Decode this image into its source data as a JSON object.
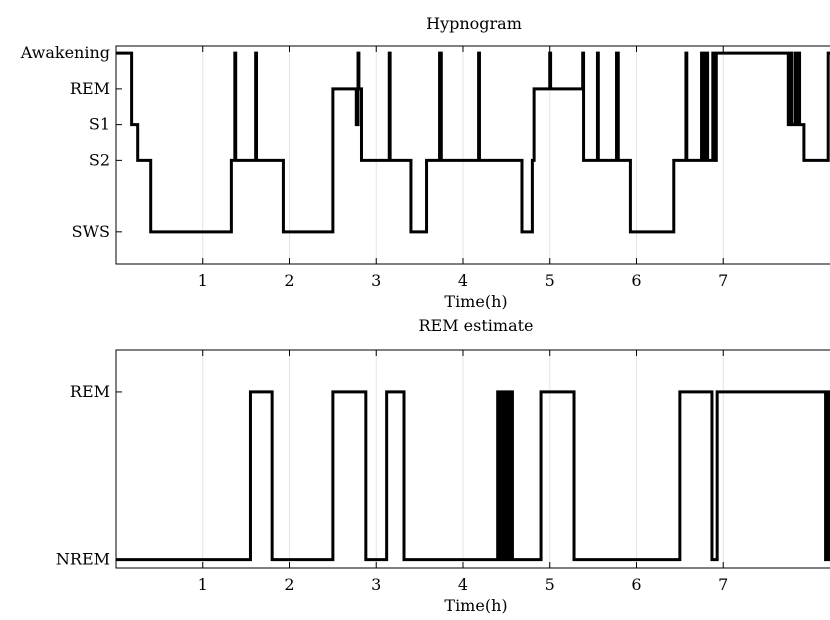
{
  "chart_data": [
    {
      "type": "line",
      "title": "Hypnogram",
      "xlabel": "Time(h)",
      "ylabel": "",
      "xlim": [
        0,
        8.3
      ],
      "x_ticks": [
        1,
        2,
        3,
        4,
        5,
        6,
        7
      ],
      "y_levels": [
        {
          "label": "Awakening",
          "value": 5
        },
        {
          "label": "REM",
          "value": 4
        },
        {
          "label": "S1",
          "value": 3
        },
        {
          "label": "S2",
          "value": 2
        },
        {
          "label": "SWS",
          "value": 0
        }
      ],
      "ylim": [
        -0.9,
        5.2
      ],
      "grid": true,
      "series": [
        {
          "values": [
            [
              0,
              5
            ],
            [
              0.18,
              5
            ],
            [
              0.18,
              3
            ],
            [
              0.25,
              3
            ],
            [
              0.25,
              2
            ],
            [
              0.4,
              2
            ],
            [
              0.4,
              0
            ],
            [
              1.33,
              0
            ],
            [
              1.33,
              2
            ],
            [
              1.37,
              2
            ],
            [
              1.37,
              5
            ],
            [
              1.38,
              5
            ],
            [
              1.38,
              2
            ],
            [
              1.61,
              2
            ],
            [
              1.61,
              5
            ],
            [
              1.62,
              5
            ],
            [
              1.62,
              2
            ],
            [
              1.93,
              2
            ],
            [
              1.93,
              0
            ],
            [
              2.5,
              0
            ],
            [
              2.5,
              4
            ],
            [
              2.77,
              4
            ],
            [
              2.77,
              3
            ],
            [
              2.79,
              3
            ],
            [
              2.79,
              5
            ],
            [
              2.8,
              5
            ],
            [
              2.8,
              4
            ],
            [
              2.83,
              4
            ],
            [
              2.83,
              2
            ],
            [
              3.15,
              2
            ],
            [
              3.15,
              5
            ],
            [
              3.16,
              5
            ],
            [
              3.16,
              2
            ],
            [
              3.4,
              2
            ],
            [
              3.4,
              0
            ],
            [
              3.58,
              0
            ],
            [
              3.58,
              2
            ],
            [
              3.73,
              2
            ],
            [
              3.73,
              5
            ],
            [
              3.75,
              5
            ],
            [
              3.75,
              2
            ],
            [
              4.18,
              2
            ],
            [
              4.18,
              5
            ],
            [
              4.19,
              5
            ],
            [
              4.19,
              2
            ],
            [
              4.68,
              2
            ],
            [
              4.68,
              0
            ],
            [
              4.8,
              0
            ],
            [
              4.8,
              2
            ],
            [
              4.82,
              2
            ],
            [
              4.82,
              4
            ],
            [
              5.0,
              4
            ],
            [
              5.0,
              5
            ],
            [
              5.01,
              5
            ],
            [
              5.01,
              4
            ],
            [
              5.38,
              4
            ],
            [
              5.38,
              5
            ],
            [
              5.39,
              5
            ],
            [
              5.39,
              2
            ],
            [
              5.55,
              2
            ],
            [
              5.55,
              5
            ],
            [
              5.56,
              5
            ],
            [
              5.56,
              2
            ],
            [
              5.77,
              2
            ],
            [
              5.77,
              5
            ],
            [
              5.79,
              5
            ],
            [
              5.79,
              2
            ],
            [
              5.93,
              2
            ],
            [
              5.93,
              0
            ],
            [
              6.43,
              0
            ],
            [
              6.43,
              2
            ],
            [
              6.57,
              2
            ],
            [
              6.57,
              5
            ],
            [
              6.58,
              5
            ],
            [
              6.58,
              2
            ],
            [
              6.75,
              2
            ],
            [
              6.75,
              5
            ],
            [
              6.77,
              5
            ],
            [
              6.77,
              2
            ],
            [
              6.8,
              2
            ],
            [
              6.8,
              5
            ],
            [
              6.82,
              5
            ],
            [
              6.82,
              2
            ],
            [
              6.88,
              2
            ],
            [
              6.88,
              5
            ],
            [
              6.9,
              5
            ],
            [
              6.9,
              2
            ],
            [
              6.92,
              2
            ],
            [
              6.92,
              5
            ],
            [
              7.75,
              5
            ],
            [
              7.75,
              3
            ],
            [
              7.77,
              3
            ],
            [
              7.77,
              5
            ],
            [
              7.79,
              5
            ],
            [
              7.79,
              3
            ],
            [
              7.83,
              3
            ],
            [
              7.83,
              5
            ],
            [
              7.84,
              5
            ],
            [
              7.84,
              3
            ],
            [
              7.87,
              3
            ],
            [
              7.87,
              5
            ],
            [
              7.88,
              5
            ],
            [
              7.88,
              3
            ],
            [
              7.93,
              3
            ],
            [
              7.93,
              2
            ],
            [
              8.21,
              2
            ],
            [
              8.21,
              5
            ],
            [
              8.3,
              5
            ]
          ]
        }
      ]
    },
    {
      "type": "line",
      "title": "REM estimate",
      "xlabel": "Time(h)",
      "ylabel": "",
      "xlim": [
        0,
        8.3
      ],
      "x_ticks": [
        1,
        2,
        3,
        4,
        5,
        6,
        7
      ],
      "y_levels": [
        {
          "label": "REM",
          "value": 1
        },
        {
          "label": "NREM",
          "value": 0
        }
      ],
      "ylim": [
        -0.05,
        1.25
      ],
      "grid": true,
      "series": [
        {
          "values": [
            [
              0,
              0
            ],
            [
              1.55,
              0
            ],
            [
              1.55,
              1
            ],
            [
              1.8,
              1
            ],
            [
              1.8,
              0
            ],
            [
              2.5,
              0
            ],
            [
              2.5,
              1
            ],
            [
              2.88,
              1
            ],
            [
              2.88,
              0
            ],
            [
              3.12,
              0
            ],
            [
              3.12,
              1
            ],
            [
              3.32,
              1
            ],
            [
              3.32,
              0
            ],
            [
              4.4,
              0
            ],
            [
              4.4,
              1
            ],
            [
              4.41,
              1
            ],
            [
              4.41,
              0
            ],
            [
              4.42,
              0
            ],
            [
              4.42,
              1
            ],
            [
              4.43,
              1
            ],
            [
              4.43,
              0
            ],
            [
              4.44,
              0
            ],
            [
              4.44,
              1
            ],
            [
              4.45,
              1
            ],
            [
              4.45,
              0
            ],
            [
              4.46,
              0
            ],
            [
              4.46,
              1
            ],
            [
              4.47,
              1
            ],
            [
              4.47,
              0
            ],
            [
              4.48,
              0
            ],
            [
              4.48,
              1
            ],
            [
              4.49,
              1
            ],
            [
              4.49,
              0
            ],
            [
              4.5,
              0
            ],
            [
              4.5,
              1
            ],
            [
              4.51,
              1
            ],
            [
              4.51,
              0
            ],
            [
              4.52,
              0
            ],
            [
              4.52,
              1
            ],
            [
              4.53,
              1
            ],
            [
              4.53,
              0
            ],
            [
              4.54,
              0
            ],
            [
              4.54,
              1
            ],
            [
              4.55,
              1
            ],
            [
              4.55,
              0
            ],
            [
              4.56,
              0
            ],
            [
              4.56,
              1
            ],
            [
              4.57,
              1
            ],
            [
              4.57,
              0
            ],
            [
              4.9,
              0
            ],
            [
              4.9,
              1
            ],
            [
              5.28,
              1
            ],
            [
              5.28,
              0
            ],
            [
              6.5,
              0
            ],
            [
              6.5,
              1
            ],
            [
              6.87,
              1
            ],
            [
              6.87,
              0
            ],
            [
              6.93,
              0
            ],
            [
              6.93,
              1
            ],
            [
              8.18,
              1
            ],
            [
              8.18,
              0
            ],
            [
              8.19,
              0
            ],
            [
              8.19,
              1
            ],
            [
              8.2,
              1
            ],
            [
              8.2,
              0
            ],
            [
              8.21,
              0
            ],
            [
              8.21,
              1
            ],
            [
              8.22,
              1
            ],
            [
              8.22,
              0
            ],
            [
              8.23,
              0
            ],
            [
              8.23,
              1
            ],
            [
              8.24,
              1
            ],
            [
              8.24,
              0
            ],
            [
              8.25,
              0
            ],
            [
              8.25,
              1
            ],
            [
              8.26,
              1
            ],
            [
              8.26,
              0
            ],
            [
              8.27,
              0
            ],
            [
              8.27,
              1
            ],
            [
              8.28,
              1
            ],
            [
              8.28,
              0
            ],
            [
              8.3,
              0
            ]
          ]
        }
      ]
    }
  ]
}
